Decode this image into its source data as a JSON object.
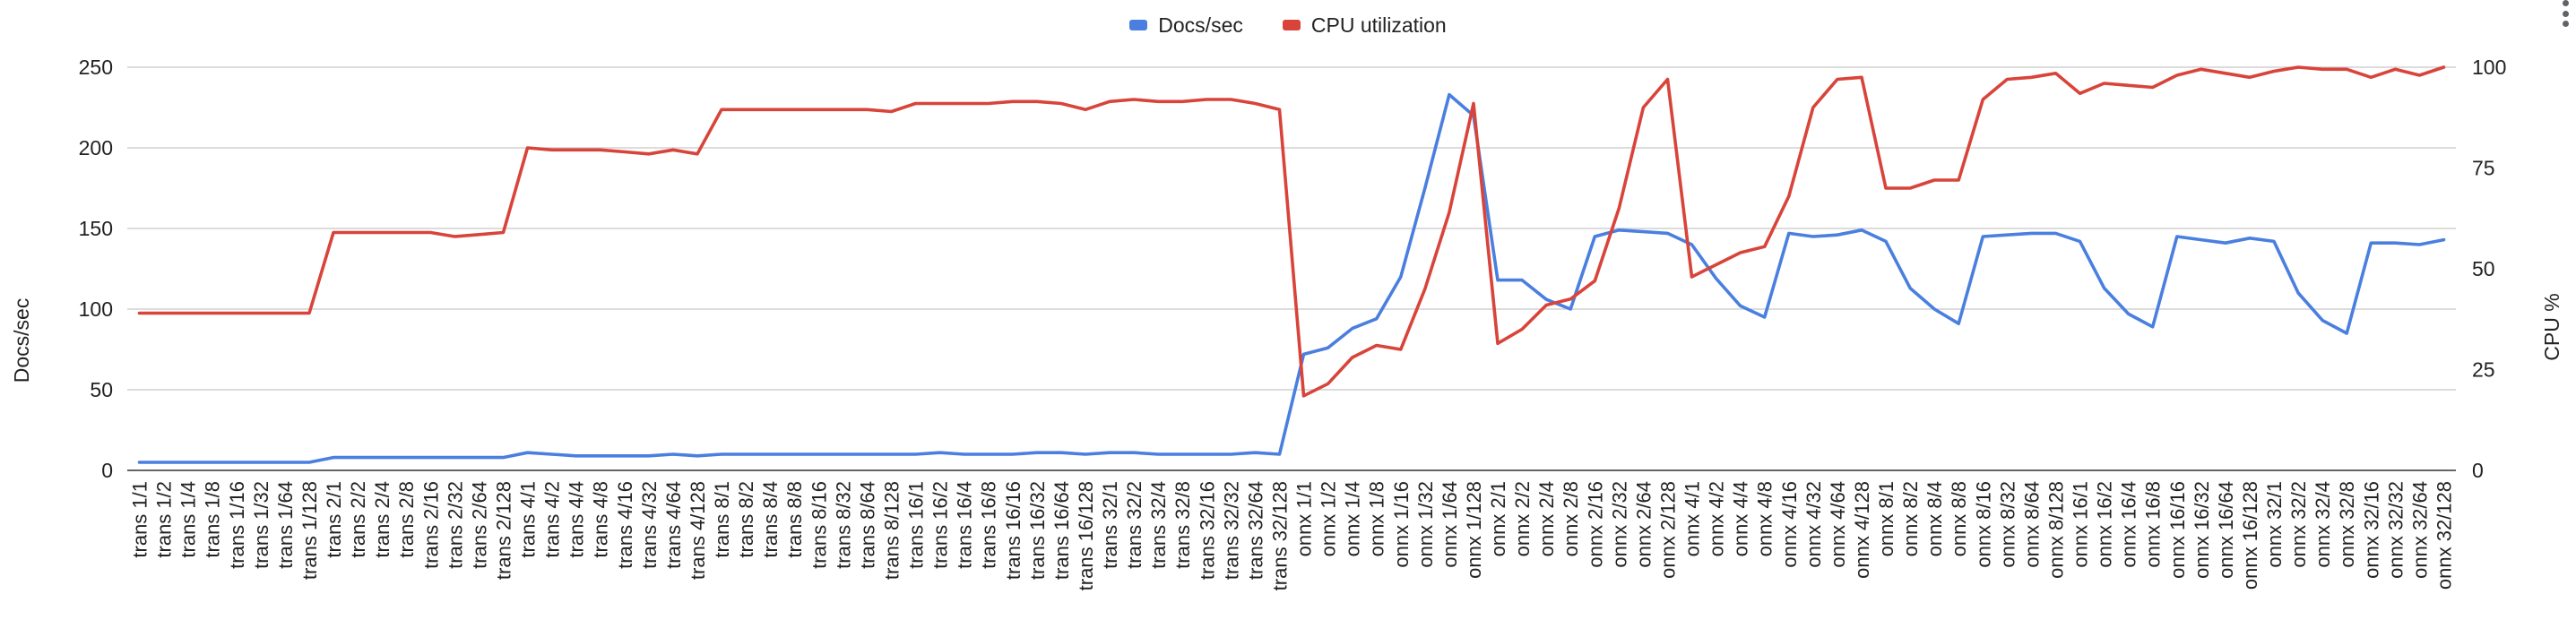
{
  "colors": {
    "docs": "#4a7fe0",
    "cpu": "#d8443a",
    "grid": "#c8c8c8",
    "text": "#222222"
  },
  "legend": {
    "docs_label": "Docs/sec",
    "cpu_label": "CPU utilization"
  },
  "menu": {
    "icon": "more-vert-icon"
  },
  "chart_data": {
    "type": "line",
    "ylabel": "Docs/sec",
    "y2label": "CPU %",
    "ylim": [
      0,
      250
    ],
    "y2lim": [
      0,
      100
    ],
    "yticks": [
      0,
      50,
      100,
      150,
      200,
      250
    ],
    "y2ticks": [
      0,
      25,
      50,
      75,
      100
    ],
    "grid": true,
    "legend_position": "top-center",
    "categories": [
      "trans 1/1",
      "trans 1/2",
      "trans 1/4",
      "trans 1/8",
      "trans 1/16",
      "trans 1/32",
      "trans 1/64",
      "trans 1/128",
      "trans 2/1",
      "trans 2/2",
      "trans 2/4",
      "trans 2/8",
      "trans 2/16",
      "trans 2/32",
      "trans 2/64",
      "trans 2/128",
      "trans 4/1",
      "trans 4/2",
      "trans 4/4",
      "trans 4/8",
      "trans 4/16",
      "trans 4/32",
      "trans 4/64",
      "trans 4/128",
      "trans 8/1",
      "trans 8/2",
      "trans 8/4",
      "trans 8/8",
      "trans 8/16",
      "trans 8/32",
      "trans 8/64",
      "trans 8/128",
      "trans 16/1",
      "trans 16/2",
      "trans 16/4",
      "trans 16/8",
      "trans 16/16",
      "trans 16/32",
      "trans 16/64",
      "trans 16/128",
      "trans 32/1",
      "trans 32/2",
      "trans 32/4",
      "trans 32/8",
      "trans 32/16",
      "trans 32/32",
      "trans 32/64",
      "trans 32/128",
      "onnx 1/1",
      "onnx 1/2",
      "onnx 1/4",
      "onnx 1/8",
      "onnx 1/16",
      "onnx 1/32",
      "onnx 1/64",
      "onnx 1/128",
      "onnx 2/1",
      "onnx 2/2",
      "onnx 2/4",
      "onnx 2/8",
      "onnx 2/16",
      "onnx 2/32",
      "onnx 2/64",
      "onnx 2/128",
      "onnx 4/1",
      "onnx 4/2",
      "onnx 4/4",
      "onnx 4/8",
      "onnx 4/16",
      "onnx 4/32",
      "onnx 4/64",
      "onnx 4/128",
      "onnx 8/1",
      "onnx 8/2",
      "onnx 8/4",
      "onnx 8/8",
      "onnx 8/16",
      "onnx 8/32",
      "onnx 8/64",
      "onnx 8/128",
      "onnx 16/1",
      "onnx 16/2",
      "onnx 16/4",
      "onnx 16/8",
      "onnx 16/16",
      "onnx 16/32",
      "onnx 16/64",
      "onnx 16/128",
      "onnx 32/1",
      "onnx 32/2",
      "onnx 32/4",
      "onnx 32/8",
      "onnx 32/16",
      "onnx 32/32",
      "onnx 32/64",
      "onnx 32/128"
    ],
    "series": [
      {
        "name": "Docs/sec",
        "axis": "left",
        "values": [
          5,
          5,
          5,
          5,
          5,
          5,
          5,
          5,
          8,
          8,
          8,
          8,
          8,
          8,
          8,
          8,
          11,
          10,
          9,
          9,
          9,
          9,
          10,
          9,
          10,
          10,
          10,
          10,
          10,
          10,
          10,
          10,
          10,
          11,
          10,
          10,
          10,
          11,
          11,
          10,
          11,
          11,
          10,
          10,
          10,
          10,
          11,
          10,
          72,
          76,
          88,
          94,
          120,
          175,
          233,
          220,
          118,
          118,
          106,
          100,
          145,
          149,
          148,
          147,
          140,
          119,
          102,
          95,
          147,
          145,
          146,
          149,
          142,
          113,
          100,
          91,
          145,
          146,
          147,
          147,
          142,
          113,
          97,
          89,
          145,
          143,
          141,
          144,
          142,
          110,
          93,
          85,
          141,
          141,
          140,
          143
        ]
      },
      {
        "name": "CPU utilization",
        "axis": "right",
        "values": [
          39,
          39,
          39,
          39,
          39,
          39,
          39,
          39,
          59,
          59,
          59,
          59,
          59,
          58,
          58.5,
          59,
          80,
          79.5,
          79.5,
          79.5,
          79,
          78.5,
          79.5,
          78.5,
          89.5,
          89.5,
          89.5,
          89.5,
          89.5,
          89.5,
          89.5,
          89,
          91,
          91,
          91,
          91,
          91.5,
          91.5,
          91,
          89.5,
          91.5,
          92,
          91.5,
          91.5,
          92,
          92,
          91,
          89.5,
          18.5,
          21.5,
          28,
          31,
          30,
          45,
          64,
          91,
          31.5,
          35,
          41,
          42.5,
          47,
          65,
          90,
          97,
          48,
          51,
          54,
          55.5,
          68,
          90,
          97,
          97.5,
          70,
          70,
          72,
          72,
          92,
          97,
          97.5,
          98.5,
          93.5,
          96,
          95.5,
          95,
          98,
          99.5,
          98.5,
          97.5,
          99,
          100,
          99.5,
          99.5,
          97.5,
          99.5,
          98,
          100
        ]
      }
    ]
  }
}
